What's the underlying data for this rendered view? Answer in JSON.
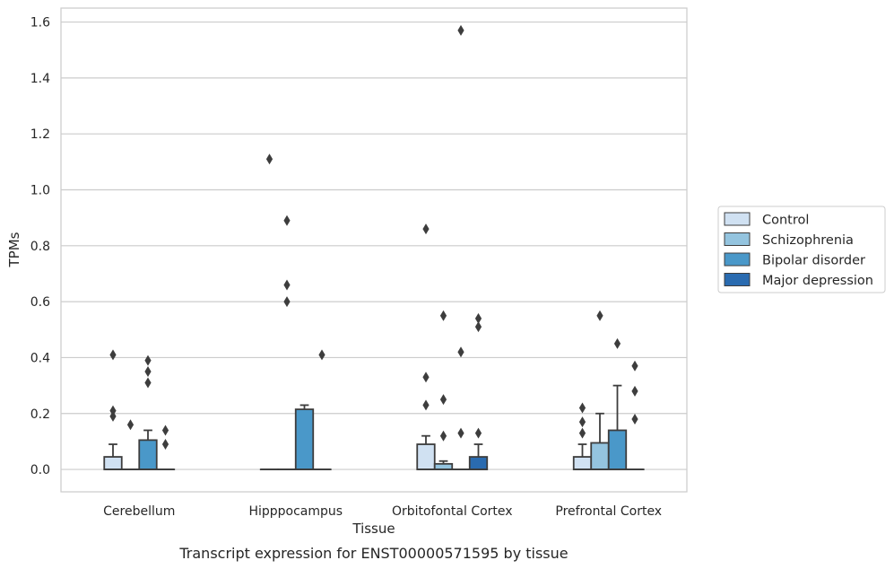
{
  "caption": "Transcript expression for ENST00000571595 by tissue",
  "chart_data": {
    "type": "box",
    "xlabel": "Tissue",
    "ylabel": "TPMs",
    "ylim": [
      -0.08,
      1.65
    ],
    "yticks": [
      0.0,
      0.2,
      0.4,
      0.6,
      0.8,
      1.0,
      1.2,
      1.4,
      1.6
    ],
    "ytick_labels": [
      "0.0",
      "0.2",
      "0.4",
      "0.6",
      "0.8",
      "1.0",
      "1.2",
      "1.4",
      "1.6"
    ],
    "grid": true,
    "legend_position": "right",
    "categories": [
      "Cerebellum",
      "Hipppocampus",
      "Orbitofontal Cortex",
      "Prefrontal Cortex"
    ],
    "series": [
      {
        "name": "Control",
        "color": "#d0e1f2",
        "boxes": [
          {
            "category": "Cerebellum",
            "q1": 0.0,
            "median": 0.0,
            "q3": 0.045,
            "whisker_low": 0.0,
            "whisker_high": 0.09,
            "outliers": [
              0.41,
              0.21,
              0.19
            ]
          },
          {
            "category": "Hipppocampus",
            "q1": 0.0,
            "median": 0.0,
            "q3": 0.0,
            "whisker_low": 0.0,
            "whisker_high": 0.0,
            "outliers": [
              1.11
            ]
          },
          {
            "category": "Orbitofontal Cortex",
            "q1": 0.0,
            "median": 0.0,
            "q3": 0.09,
            "whisker_low": 0.0,
            "whisker_high": 0.12,
            "outliers": [
              0.86,
              0.33,
              0.23
            ]
          },
          {
            "category": "Prefrontal Cortex",
            "q1": 0.0,
            "median": 0.0,
            "q3": 0.045,
            "whisker_low": 0.0,
            "whisker_high": 0.09,
            "outliers": [
              0.22,
              0.17,
              0.13
            ]
          }
        ]
      },
      {
        "name": "Schizophrenia",
        "color": "#94c4df",
        "boxes": [
          {
            "category": "Cerebellum",
            "q1": 0.0,
            "median": 0.0,
            "q3": 0.0,
            "whisker_low": 0.0,
            "whisker_high": 0.0,
            "outliers": [
              0.16
            ]
          },
          {
            "category": "Hipppocampus",
            "q1": 0.0,
            "median": 0.0,
            "q3": 0.0,
            "whisker_low": 0.0,
            "whisker_high": 0.0,
            "outliers": [
              0.89,
              0.66,
              0.6
            ]
          },
          {
            "category": "Orbitofontal Cortex",
            "q1": 0.0,
            "median": 0.0,
            "q3": 0.02,
            "whisker_low": 0.0,
            "whisker_high": 0.03,
            "outliers": [
              0.55,
              0.25,
              0.12
            ]
          },
          {
            "category": "Prefrontal Cortex",
            "q1": 0.0,
            "median": 0.0,
            "q3": 0.095,
            "whisker_low": 0.0,
            "whisker_high": 0.2,
            "outliers": [
              0.55
            ]
          }
        ]
      },
      {
        "name": "Bipolar disorder",
        "color": "#4a98c9",
        "boxes": [
          {
            "category": "Cerebellum",
            "q1": 0.0,
            "median": 0.0,
            "q3": 0.105,
            "whisker_low": 0.0,
            "whisker_high": 0.14,
            "outliers": [
              0.39,
              0.35,
              0.31
            ]
          },
          {
            "category": "Hipppocampus",
            "q1": 0.0,
            "median": 0.0,
            "q3": 0.215,
            "whisker_low": 0.0,
            "whisker_high": 0.23,
            "outliers": []
          },
          {
            "category": "Orbitofontal Cortex",
            "q1": 0.0,
            "median": 0.0,
            "q3": 0.0,
            "whisker_low": 0.0,
            "whisker_high": 0.0,
            "outliers": [
              1.57,
              0.42,
              0.13
            ]
          },
          {
            "category": "Prefrontal Cortex",
            "q1": 0.0,
            "median": 0.0,
            "q3": 0.14,
            "whisker_low": 0.0,
            "whisker_high": 0.3,
            "outliers": [
              0.45
            ]
          }
        ]
      },
      {
        "name": "Major depression",
        "color": "#2a6bb0",
        "boxes": [
          {
            "category": "Cerebellum",
            "q1": 0.0,
            "median": 0.0,
            "q3": 0.0,
            "whisker_low": 0.0,
            "whisker_high": 0.0,
            "outliers": [
              0.14,
              0.09
            ]
          },
          {
            "category": "Hipppocampus",
            "q1": 0.0,
            "median": 0.0,
            "q3": 0.0,
            "whisker_low": 0.0,
            "whisker_high": 0.0,
            "outliers": [
              0.41
            ]
          },
          {
            "category": "Orbitofontal Cortex",
            "q1": 0.0,
            "median": 0.0,
            "q3": 0.045,
            "whisker_low": 0.0,
            "whisker_high": 0.09,
            "outliers": [
              0.54,
              0.51,
              0.13
            ]
          },
          {
            "category": "Prefrontal Cortex",
            "q1": 0.0,
            "median": 0.0,
            "q3": 0.0,
            "whisker_low": 0.0,
            "whisker_high": 0.0,
            "outliers": [
              0.37,
              0.28,
              0.18
            ]
          }
        ]
      }
    ]
  }
}
